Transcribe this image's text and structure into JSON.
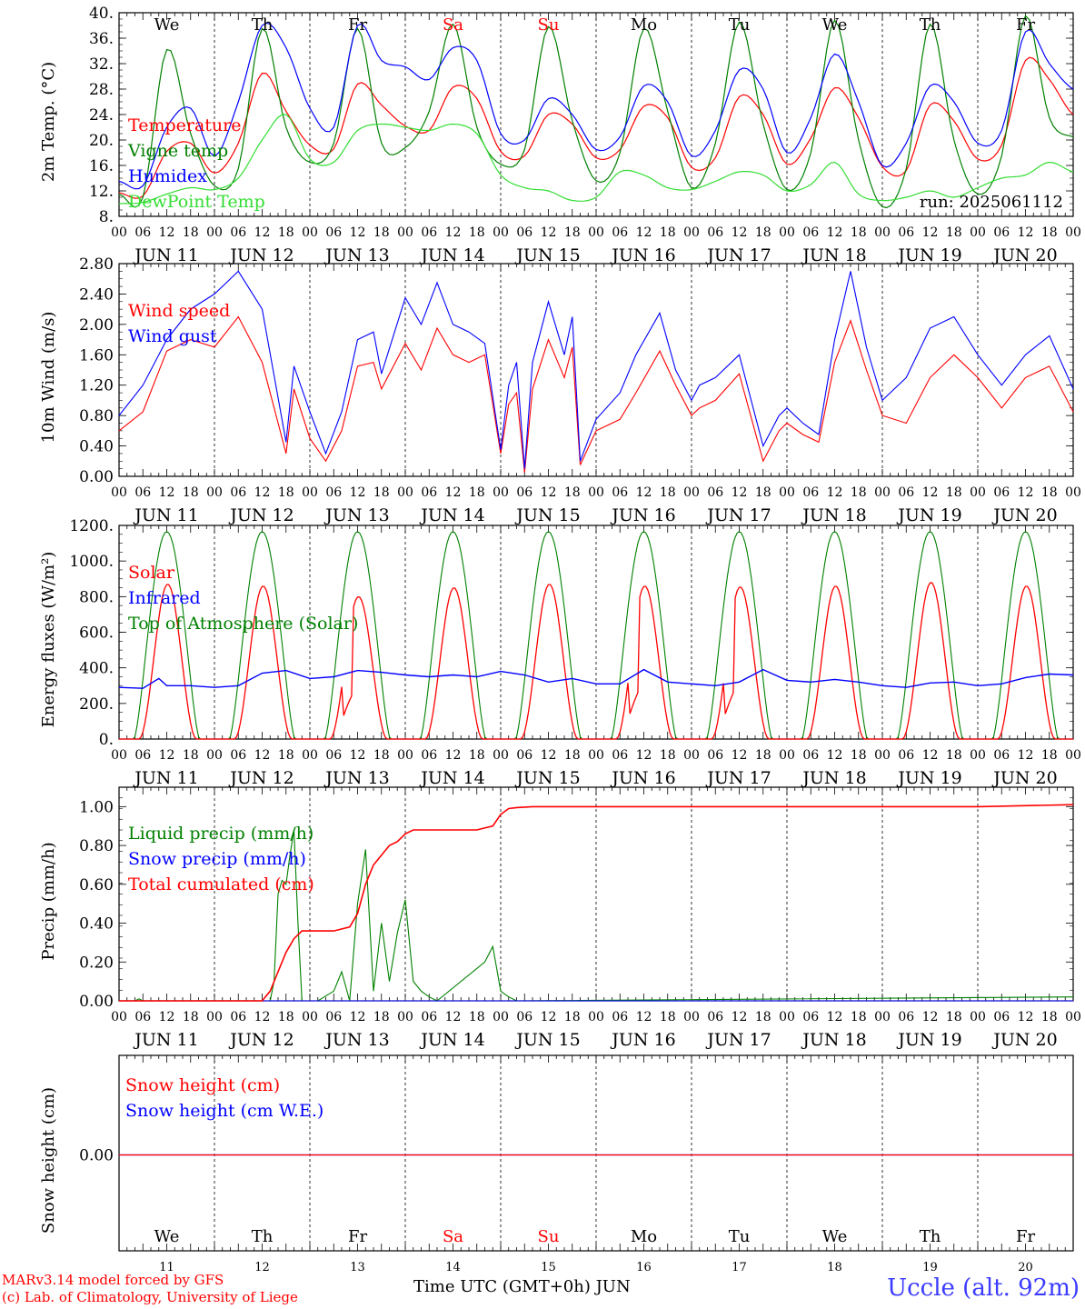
{
  "colors": {
    "red": "#ff0000",
    "blue": "#0000ff",
    "green": "#008000",
    "lightgreen": "#33dd33",
    "dayblack": "#000000"
  },
  "axis": {
    "hour_ticks": [
      "00",
      "06",
      "12",
      "18"
    ],
    "final_tick": "00",
    "dates": [
      "JUN 11",
      "JUN 12",
      "JUN 13",
      "JUN 14",
      "JUN 15",
      "JUN 16",
      "JUN 17",
      "JUN 18",
      "JUN 19",
      "JUN 20"
    ],
    "days": [
      {
        "label": "We",
        "weekend": false
      },
      {
        "label": "Th",
        "weekend": false
      },
      {
        "label": "Fr",
        "weekend": false
      },
      {
        "label": "Sa",
        "weekend": true
      },
      {
        "label": "Su",
        "weekend": true
      },
      {
        "label": "Mo",
        "weekend": false
      },
      {
        "label": "Tu",
        "weekend": false
      },
      {
        "label": "We",
        "weekend": false
      },
      {
        "label": "Th",
        "weekend": false
      },
      {
        "label": "Fr",
        "weekend": false
      }
    ],
    "day_numbers": [
      "11",
      "12",
      "13",
      "14",
      "15",
      "16",
      "17",
      "18",
      "19",
      "20"
    ]
  },
  "run_label": "run: 2025061112",
  "footer": {
    "model": "MARv3.14 model forced by GFS",
    "copyright": "(c) Lab. of Climatology, University of Liege",
    "time_label": "Time UTC (GMT+0h) JUN",
    "station": "Uccle (alt. 92m)"
  },
  "chart_data": [
    {
      "type": "line",
      "ylabel": "2m Temp. (°C)",
      "yticks": [
        "8.",
        "12.",
        "16.",
        "20.",
        "24.",
        "28.",
        "32.",
        "36.",
        "40."
      ],
      "ylim": [
        8,
        40
      ],
      "x_unit": "hours since JUN 11 00 UTC",
      "xlim": [
        0,
        240
      ],
      "series": [
        {
          "name": "Temperature",
          "color": "red",
          "x": [
            0,
            6,
            12,
            18,
            24,
            30,
            36,
            42,
            48,
            54,
            60,
            66,
            72,
            78,
            84,
            90,
            96,
            102,
            108,
            114,
            120,
            126,
            132,
            138,
            144,
            150,
            156,
            162,
            168,
            174,
            180,
            186,
            192,
            198,
            204,
            210,
            216,
            222,
            228,
            234,
            240
          ],
          "y": [
            11.7,
            11.2,
            18.2,
            19.5,
            14.8,
            19.5,
            30.5,
            24.5,
            19.2,
            18.6,
            28.8,
            25.5,
            22.2,
            21.5,
            28.3,
            26.5,
            18.2,
            17.5,
            24,
            22.5,
            17.2,
            18.5,
            25.3,
            23.5,
            15.7,
            17.2,
            26.8,
            24,
            16.2,
            20.3,
            28.2,
            23.5,
            15.8,
            15.2,
            25.5,
            23,
            17,
            19.2,
            32.5,
            29.5,
            24
          ]
        },
        {
          "name": "Vigne temp",
          "color": "green",
          "x": [
            0,
            6,
            12,
            18,
            24,
            30,
            36,
            42,
            48,
            54,
            60,
            66,
            72,
            78,
            84,
            90,
            96,
            102,
            108,
            114,
            120,
            126,
            132,
            138,
            144,
            150,
            156,
            162,
            168,
            174,
            180,
            186,
            192,
            198,
            204,
            210,
            216,
            222,
            228,
            234,
            240
          ],
          "y": [
            11.5,
            11,
            34.2,
            21,
            12.8,
            15.5,
            37.5,
            22,
            16.5,
            19.5,
            37.5,
            19.5,
            18.8,
            24.5,
            38.2,
            22,
            16.2,
            18.5,
            37.8,
            23,
            13.6,
            18,
            37.5,
            24.5,
            12.5,
            19.5,
            38.5,
            22.5,
            12.2,
            18,
            38.8,
            20,
            9.5,
            15.5,
            38.2,
            20,
            11.5,
            17.5,
            39.5,
            23.5,
            20.5
          ]
        },
        {
          "name": "Humidex",
          "color": "blue",
          "x": [
            0,
            6,
            12,
            18,
            24,
            30,
            36,
            42,
            48,
            54,
            60,
            66,
            72,
            78,
            84,
            90,
            96,
            102,
            108,
            114,
            120,
            126,
            132,
            138,
            144,
            150,
            156,
            162,
            168,
            174,
            180,
            186,
            192,
            198,
            204,
            210,
            216,
            222,
            228,
            234,
            240
          ],
          "y": [
            13.5,
            12.8,
            22,
            25,
            17.5,
            26,
            38,
            34.5,
            25,
            22,
            38,
            32.5,
            31.5,
            29.5,
            34.5,
            32.5,
            21,
            20,
            26.5,
            24,
            18.5,
            20.5,
            28.5,
            26,
            17.5,
            21.5,
            31,
            28,
            18,
            23.5,
            33.5,
            26,
            16,
            19.5,
            28.5,
            26,
            19.5,
            21.5,
            37,
            32,
            28
          ]
        },
        {
          "name": "DewPoint Temp",
          "color": "lightgreen",
          "x": [
            0,
            6,
            12,
            18,
            24,
            30,
            36,
            42,
            48,
            54,
            60,
            66,
            72,
            78,
            84,
            90,
            96,
            102,
            108,
            114,
            120,
            126,
            132,
            138,
            144,
            150,
            156,
            162,
            168,
            174,
            180,
            186,
            192,
            198,
            204,
            210,
            216,
            222,
            228,
            234,
            240
          ],
          "y": [
            10,
            10.2,
            11.5,
            12.5,
            12.2,
            14,
            20,
            24,
            17,
            16.5,
            21.5,
            22.5,
            22,
            21.5,
            22.5,
            21,
            14.5,
            12.5,
            12,
            10.5,
            11,
            15,
            14.5,
            12.5,
            12.2,
            13.5,
            15,
            14.5,
            12,
            13,
            16.5,
            11.5,
            10.5,
            11,
            12,
            11,
            12.5,
            14,
            14.5,
            16.5,
            15
          ]
        }
      ]
    },
    {
      "type": "line",
      "ylabel": "10m Wind (m/s)",
      "yticks": [
        "0.00",
        "0.40",
        "0.80",
        "1.20",
        "1.60",
        "2.00",
        "2.40",
        "2.80"
      ],
      "ylim": [
        0,
        2.8
      ],
      "x_unit": "hours since JUN 11 00 UTC",
      "xlim": [
        0,
        240
      ],
      "series": [
        {
          "name": "Wind speed",
          "color": "red",
          "x": [
            0,
            6,
            12,
            18,
            24,
            30,
            36,
            42,
            44,
            48,
            52,
            56,
            60,
            64,
            66,
            72,
            76,
            80,
            84,
            88,
            92,
            96,
            98,
            100,
            102,
            104,
            108,
            112,
            114,
            116,
            120,
            126,
            130,
            136,
            140,
            144,
            146,
            150,
            156,
            162,
            166,
            168,
            172,
            176,
            180,
            184,
            188,
            192,
            198,
            204,
            210,
            216,
            222,
            228,
            234,
            240
          ],
          "y": [
            0.6,
            0.85,
            1.65,
            1.8,
            1.7,
            2.1,
            1.5,
            0.3,
            1.15,
            0.5,
            0.2,
            0.6,
            1.45,
            1.5,
            1.15,
            1.75,
            1.4,
            1.95,
            1.6,
            1.5,
            1.6,
            0.3,
            0.95,
            1.1,
            0.05,
            1.15,
            1.8,
            1.3,
            1.7,
            0.15,
            0.6,
            0.75,
            1.1,
            1.65,
            1.2,
            0.8,
            0.9,
            1.0,
            1.35,
            0.2,
            0.6,
            0.7,
            0.55,
            0.45,
            1.5,
            2.05,
            1.4,
            0.8,
            0.7,
            1.3,
            1.6,
            1.3,
            0.9,
            1.3,
            1.45,
            0.85
          ]
        },
        {
          "name": "Wind gust",
          "color": "blue",
          "x": [
            0,
            6,
            12,
            18,
            24,
            30,
            36,
            42,
            44,
            48,
            52,
            56,
            60,
            64,
            66,
            72,
            76,
            80,
            84,
            88,
            92,
            96,
            98,
            100,
            102,
            104,
            108,
            112,
            114,
            116,
            120,
            126,
            130,
            136,
            140,
            144,
            146,
            150,
            156,
            162,
            166,
            168,
            172,
            176,
            180,
            184,
            188,
            192,
            198,
            204,
            210,
            216,
            222,
            228,
            234,
            240
          ],
          "y": [
            0.8,
            1.2,
            1.8,
            2.2,
            2.4,
            2.7,
            2.2,
            0.45,
            1.45,
            0.85,
            0.3,
            0.85,
            1.8,
            1.9,
            1.35,
            2.35,
            2.0,
            2.55,
            2.0,
            1.9,
            1.75,
            0.35,
            1.2,
            1.5,
            0.1,
            1.5,
            2.3,
            1.6,
            2.1,
            0.2,
            0.75,
            1.1,
            1.6,
            2.15,
            1.4,
            1.0,
            1.2,
            1.3,
            1.6,
            0.4,
            0.8,
            0.9,
            0.7,
            0.55,
            1.8,
            2.7,
            1.7,
            1.0,
            1.3,
            1.95,
            2.1,
            1.6,
            1.2,
            1.6,
            1.85,
            1.15
          ]
        }
      ]
    },
    {
      "type": "line",
      "ylabel": "Energy fluxes (W/m²)",
      "yticks": [
        "0.",
        "200.",
        "400.",
        "600.",
        "800.",
        "1000.",
        "1200."
      ],
      "ylim": [
        0,
        1200
      ],
      "x_unit": "hours since JUN 11 00 UTC",
      "xlim": [
        0,
        240
      ],
      "series": [
        {
          "name": "Solar",
          "color": "red",
          "peaks": [
            870,
            860,
            800,
            850,
            870,
            860,
            855,
            860,
            880,
            860
          ],
          "dip_days": [
            2,
            5,
            6
          ]
        },
        {
          "name": "Infrared",
          "color": "blue",
          "x": [
            0,
            6,
            10,
            12,
            18,
            24,
            30,
            36,
            42,
            48,
            54,
            60,
            66,
            72,
            78,
            84,
            90,
            96,
            102,
            108,
            114,
            120,
            126,
            132,
            138,
            144,
            150,
            156,
            162,
            168,
            174,
            180,
            186,
            192,
            198,
            204,
            210,
            216,
            222,
            228,
            234,
            240
          ],
          "y": [
            290,
            285,
            340,
            300,
            300,
            290,
            300,
            370,
            385,
            340,
            350,
            385,
            375,
            360,
            350,
            360,
            350,
            380,
            360,
            320,
            340,
            310,
            310,
            390,
            320,
            310,
            300,
            320,
            390,
            330,
            320,
            335,
            320,
            300,
            290,
            315,
            320,
            300,
            310,
            345,
            365,
            360
          ]
        },
        {
          "name": "Top of Atmosphere (Solar)",
          "color": "green",
          "peak": 1165
        }
      ]
    },
    {
      "type": "line",
      "ylabel": "Precip (mm/h)",
      "yticks": [
        "0.00",
        "0.20",
        "0.40",
        "0.60",
        "0.80",
        "1.00"
      ],
      "ylim": [
        0,
        1.1
      ],
      "x_unit": "hours since JUN 11 00 UTC",
      "xlim": [
        0,
        240
      ],
      "series": [
        {
          "name": "Liquid precip (mm/h)",
          "color": "green",
          "x": [
            0,
            4,
            5,
            6,
            38,
            39,
            40,
            41,
            42,
            43,
            44,
            45,
            46,
            50,
            54,
            56,
            58,
            60,
            62,
            64,
            66,
            68,
            70,
            72,
            74,
            76,
            78,
            80,
            92,
            94,
            96,
            98,
            100,
            240
          ],
          "y": [
            0,
            0,
            0.01,
            0,
            0,
            0.1,
            0.55,
            0.62,
            0.6,
            0.75,
            0.88,
            0.4,
            0,
            0,
            0.05,
            0.15,
            0,
            0.5,
            0.78,
            0.05,
            0.4,
            0.1,
            0.35,
            0.52,
            0.1,
            0.05,
            0.02,
            0,
            0.2,
            0.28,
            0.05,
            0.02,
            0,
            0.02
          ]
        },
        {
          "name": "Snow precip (mm/h)",
          "color": "blue",
          "x": [
            0,
            240
          ],
          "y": [
            0,
            0
          ]
        },
        {
          "name": "Total cumulated (cm)",
          "color": "red",
          "x": [
            0,
            36,
            38,
            40,
            42,
            44,
            46,
            48,
            50,
            54,
            58,
            60,
            62,
            64,
            66,
            68,
            70,
            72,
            74,
            78,
            82,
            90,
            94,
            96,
            98,
            100,
            104,
            120,
            144,
            168,
            192,
            216,
            240
          ],
          "y": [
            0,
            0,
            0.05,
            0.15,
            0.25,
            0.32,
            0.36,
            0.36,
            0.36,
            0.36,
            0.38,
            0.45,
            0.6,
            0.7,
            0.75,
            0.8,
            0.82,
            0.86,
            0.88,
            0.88,
            0.88,
            0.88,
            0.9,
            0.96,
            0.99,
            0.995,
            1.0,
            1.0,
            1.0,
            1.0,
            1.0,
            1.0,
            1.01
          ]
        }
      ]
    },
    {
      "type": "line",
      "ylabel": "Snow height (cm)",
      "yticks": [
        "0.00"
      ],
      "x_unit": "hours since JUN 11 00 UTC",
      "xlim": [
        0,
        240
      ],
      "series": [
        {
          "name": "Snow height (cm)",
          "color": "red",
          "x": [
            0,
            240
          ],
          "y": [
            0,
            0
          ]
        },
        {
          "name": "Snow height (cm W.E.)",
          "color": "blue",
          "x": [
            0,
            240
          ],
          "y": [
            0,
            0
          ]
        }
      ]
    }
  ]
}
